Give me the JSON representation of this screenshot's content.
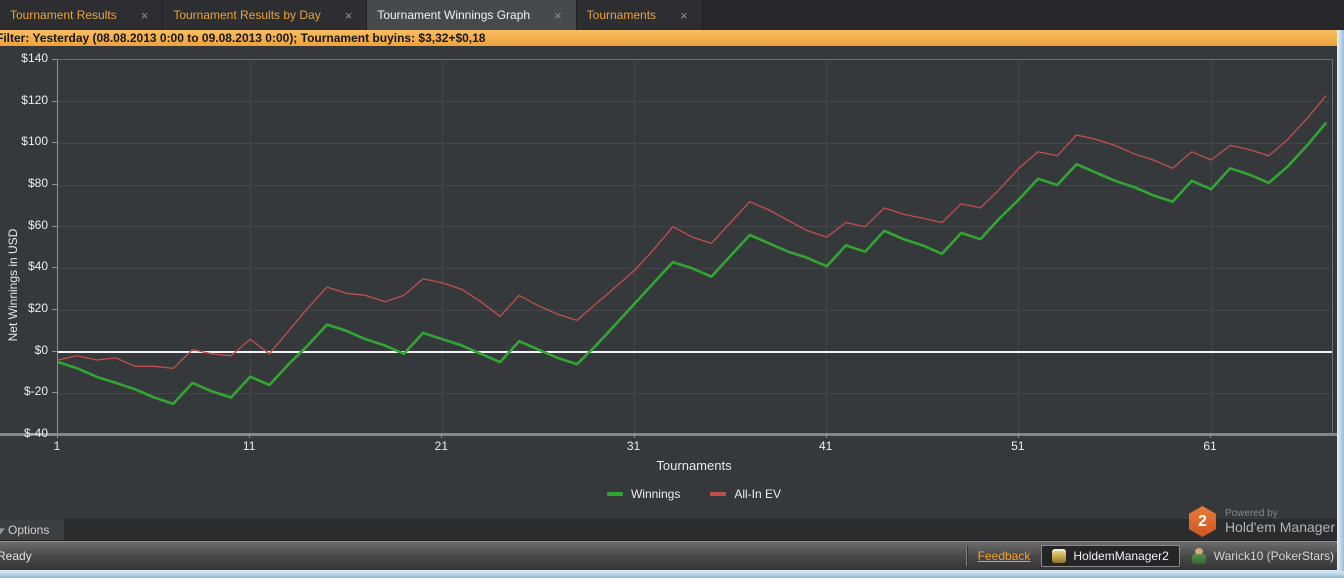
{
  "ui": {
    "close": "×"
  },
  "tabs": [
    {
      "label": "Tournament Results",
      "active": false
    },
    {
      "label": "Tournament Results by Day",
      "active": false
    },
    {
      "label": "Tournament Winnings Graph",
      "active": true
    },
    {
      "label": "Tournaments",
      "active": false
    }
  ],
  "filter_bar": {
    "label": "Filter:",
    "text": " Yesterday (08.08.2013 0:00 to 09.08.2013 0:00); Tournament buyins: $3,32+$0,18"
  },
  "chart_data": {
    "type": "line",
    "title": "",
    "xlabel": "Tournaments",
    "ylabel": "Net Winnings in USD",
    "xlim": [
      1,
      67
    ],
    "ylim": [
      -40,
      140
    ],
    "grid": true,
    "zero_line": 0,
    "legend_position": "bottom-center",
    "x_ticks": [
      1,
      11,
      21,
      31,
      41,
      51,
      61
    ],
    "y_ticks": [
      {
        "label": "$140",
        "value": 140
      },
      {
        "label": "$120",
        "value": 120
      },
      {
        "label": "$100",
        "value": 100
      },
      {
        "label": "$80",
        "value": 80
      },
      {
        "label": "$60",
        "value": 60
      },
      {
        "label": "$40",
        "value": 40
      },
      {
        "label": "$20",
        "value": 20
      },
      {
        "label": "$0",
        "value": 0
      },
      {
        "label": "$-20",
        "value": -20
      },
      {
        "label": "$-40",
        "value": -40
      }
    ],
    "x": [
      1,
      2,
      3,
      4,
      5,
      6,
      7,
      8,
      9,
      10,
      11,
      12,
      13,
      14,
      15,
      16,
      17,
      18,
      19,
      20,
      21,
      22,
      23,
      24,
      25,
      26,
      27,
      28,
      29,
      30,
      31,
      32,
      33,
      34,
      35,
      36,
      37,
      38,
      39,
      40,
      41,
      42,
      43,
      44,
      45,
      46,
      47,
      48,
      49,
      50,
      51,
      52,
      53,
      54,
      55,
      56,
      57,
      58,
      59,
      60,
      61,
      62,
      63,
      64,
      65,
      66,
      67
    ],
    "series": [
      {
        "name": "Winnings",
        "color": "#32a532",
        "values": [
          -5,
          -8,
          -12,
          -15,
          -18,
          -22,
          -25,
          -15,
          -19,
          -22,
          -12,
          -16,
          -6,
          3,
          13,
          10,
          6,
          3,
          -1,
          9,
          6,
          3,
          -1,
          -5,
          5,
          1,
          -3,
          -6,
          3,
          13,
          23,
          33,
          43,
          40,
          36,
          46,
          56,
          52,
          48,
          45,
          41,
          51,
          48,
          58,
          54,
          51,
          47,
          57,
          54,
          64,
          73,
          83,
          80,
          90,
          86,
          82,
          79,
          75,
          72,
          82,
          78,
          88,
          85,
          81,
          89,
          99,
          110
        ]
      },
      {
        "name": "All-In EV",
        "color": "#c0504d",
        "values": [
          -4,
          -2,
          -4,
          -3,
          -7,
          -7,
          -8,
          1,
          -1,
          -2,
          6,
          -1,
          10,
          21,
          31,
          28,
          27,
          24,
          27,
          35,
          33,
          30,
          24,
          17,
          27,
          22,
          18,
          15,
          23,
          31,
          39,
          49,
          60,
          55,
          52,
          62,
          72,
          68,
          63,
          58,
          55,
          62,
          60,
          69,
          66,
          64,
          62,
          71,
          69,
          78,
          88,
          96,
          94,
          104,
          102,
          99,
          95,
          92,
          88,
          96,
          92,
          99,
          97,
          94,
          102,
          112,
          123
        ]
      }
    ]
  },
  "options_bar": {
    "label": "Options"
  },
  "powered_by": {
    "badge": "2",
    "line1": "Powered by",
    "line2": "Hold'em Manager"
  },
  "status_bar": {
    "ready": "Ready",
    "feedback": "Feedback",
    "app": "HoldemManager2",
    "account": "Warick10 (PokerStars)"
  },
  "colors": {
    "accent_orange": "#e8a33d",
    "filter_bar": "#f2ab47",
    "winnings_line": "#32a532",
    "allin_ev_line": "#c0504d",
    "zero_line": "#f2f3f4",
    "panel_bg": "#36393c"
  }
}
